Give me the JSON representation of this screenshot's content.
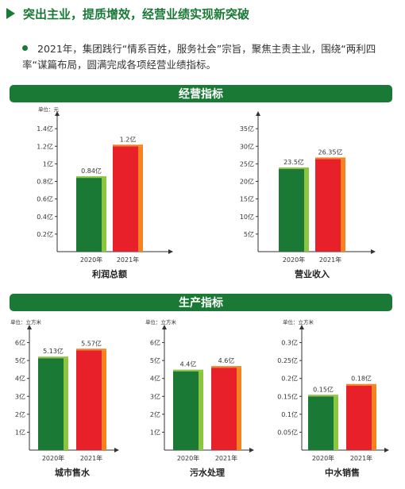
{
  "header": {
    "title": "突出主业，提质增效，经营业绩实现新突破"
  },
  "intro": {
    "text": "2021年，集团践行“情系百姓，服务社会”宗旨，聚焦主责主业，围绕“两利四率“谋篇布局，圆满完成各项经营业绩指标。"
  },
  "sections": {
    "operating": "经营指标",
    "production": "生产指标"
  },
  "colors": {
    "green": "#1a7a35",
    "lightgreen": "#8cc63f",
    "red": "#e8202a",
    "orange": "#f58220"
  },
  "chart_data": [
    {
      "id": "profit",
      "type": "bar",
      "title": "利润总额",
      "unit_label": "单位：元",
      "categories": [
        "2020年",
        "2021年"
      ],
      "values": [
        0.84,
        1.2
      ],
      "value_labels": [
        "0.84亿",
        "1.2亿"
      ],
      "yticks": [
        0.2,
        0.4,
        0.6,
        0.8,
        1,
        1.2,
        1.4
      ],
      "ytick_labels": [
        "0.2亿",
        "0.4亿",
        "0.6亿",
        "0.8亿",
        "1亿",
        "1.2亿",
        "1.4亿"
      ],
      "ylim": [
        0,
        1.6
      ]
    },
    {
      "id": "revenue",
      "type": "bar",
      "title": "营业收入",
      "unit_label": "",
      "categories": [
        "2020年",
        "2021年"
      ],
      "values": [
        23.5,
        26.35
      ],
      "value_labels": [
        "23.5亿",
        "26.35亿"
      ],
      "yticks": [
        5,
        10,
        15,
        20,
        25,
        30,
        35
      ],
      "ytick_labels": [
        "5亿",
        "10亿",
        "15亿",
        "20亿",
        "25亿",
        "30亿",
        "35亿"
      ],
      "ylim": [
        0,
        40
      ]
    },
    {
      "id": "supply",
      "type": "bar",
      "title": "城市售水",
      "unit_label": "单位：立方米",
      "categories": [
        "2020年",
        "2021年"
      ],
      "values": [
        5.13,
        5.57
      ],
      "value_labels": [
        "5.13亿",
        "5.57亿"
      ],
      "yticks": [
        1,
        2,
        3,
        4,
        5,
        6
      ],
      "ytick_labels": [
        "1亿",
        "2亿",
        "3亿",
        "4亿",
        "5亿",
        "6亿"
      ],
      "ylim": [
        0,
        7
      ]
    },
    {
      "id": "sewage",
      "type": "bar",
      "title": "污水处理",
      "unit_label": "单位：立方米",
      "categories": [
        "2020年",
        "2021年"
      ],
      "values": [
        4.4,
        4.6
      ],
      "value_labels": [
        "4.4亿",
        "4.6亿"
      ],
      "yticks": [
        1,
        2,
        3,
        4,
        5,
        6
      ],
      "ytick_labels": [
        "1亿",
        "2亿",
        "3亿",
        "4亿",
        "5亿",
        "6亿"
      ],
      "ylim": [
        0,
        7
      ]
    },
    {
      "id": "reclaimed",
      "type": "bar",
      "title": "中水销售",
      "unit_label": "单位：立方米",
      "categories": [
        "2020年",
        "2021年"
      ],
      "values": [
        0.15,
        0.18
      ],
      "value_labels": [
        "0.15亿",
        "0.18亿"
      ],
      "yticks": [
        0.05,
        0.1,
        0.15,
        0.2,
        0.25,
        0.3
      ],
      "ytick_labels": [
        "0.05亿",
        "0.1亿",
        "0.15亿",
        "0.2亿",
        "0.25亿",
        "0.3亿"
      ],
      "ylim": [
        0,
        0.35
      ]
    }
  ]
}
